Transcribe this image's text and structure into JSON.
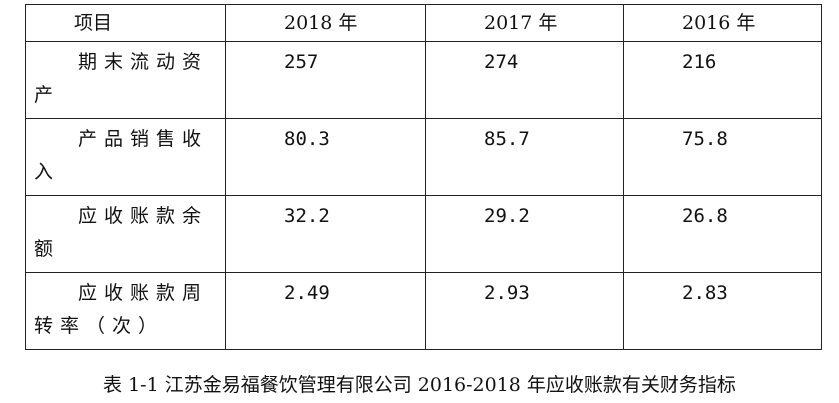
{
  "table": {
    "header": {
      "label": "项目",
      "years": [
        "2018 年",
        "2017 年",
        "2016 年"
      ]
    },
    "rows": [
      {
        "label": "期末流动资产",
        "values": [
          "257",
          "274",
          "216"
        ]
      },
      {
        "label": "产品销售收入",
        "values": [
          "80.3",
          "85.7",
          "75.8"
        ]
      },
      {
        "label": "应收账款余额",
        "values": [
          "32.2",
          "29.2",
          "26.8"
        ]
      },
      {
        "label": "应收账款周转率（次）",
        "values": [
          "2.49",
          "2.93",
          "2.83"
        ]
      }
    ]
  },
  "caption": "表 1-1 江苏金易福餐饮管理有限公司 2016-2018 年应收账款有关财务指标"
}
